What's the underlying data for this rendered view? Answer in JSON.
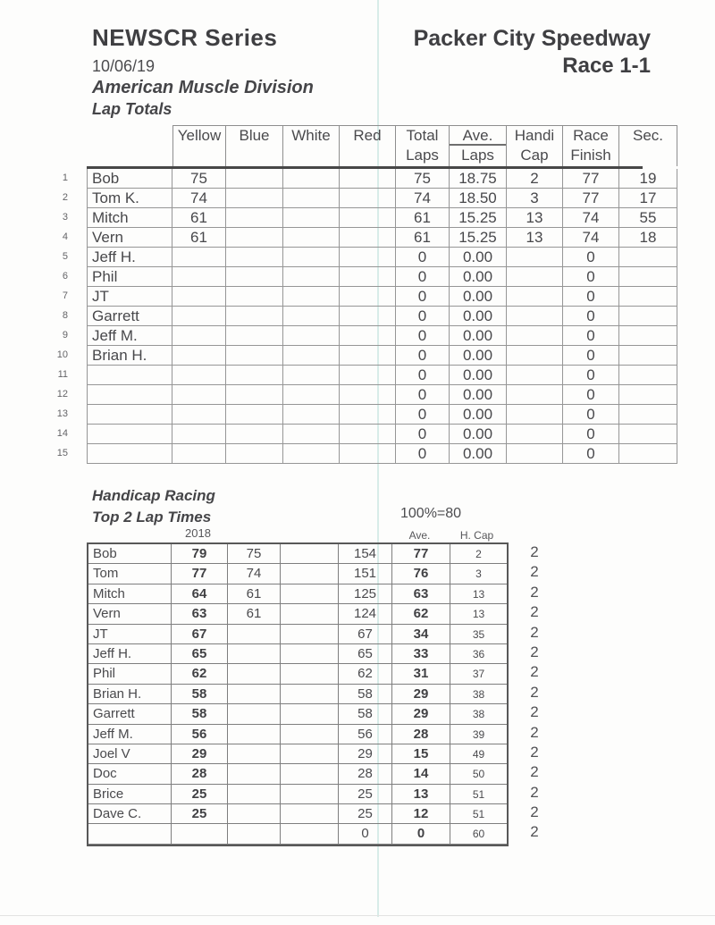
{
  "header": {
    "series": "NEWSCR Series",
    "date": "10/06/19",
    "track": "Packer City Speedway",
    "race": "Race 1-1",
    "division": "American Muscle Division",
    "sheet_title": "Lap Totals"
  },
  "lap_totals": {
    "head": {
      "yellow": "Yellow",
      "blue": "Blue",
      "white": "White",
      "red": "Red",
      "total1": "Total",
      "total2": "Laps",
      "ave1": "Ave.",
      "ave2": "Laps",
      "handi1": "Handi",
      "handi2": "Cap",
      "race1": "Race",
      "race2": "Finish",
      "sec": "Sec."
    },
    "row_numbers": [
      "1",
      "2",
      "3",
      "4",
      "5",
      "6",
      "7",
      "8",
      "9",
      "10",
      "11",
      "12",
      "13",
      "14",
      "15"
    ],
    "rows": [
      [
        "Bob",
        "75",
        "",
        "",
        "",
        "75",
        "18.75",
        "2",
        "77",
        "19"
      ],
      [
        "Tom K.",
        "74",
        "",
        "",
        "",
        "74",
        "18.50",
        "3",
        "77",
        "17"
      ],
      [
        "Mitch",
        "61",
        "",
        "",
        "",
        "61",
        "15.25",
        "13",
        "74",
        "55"
      ],
      [
        "Vern",
        "61",
        "",
        "",
        "",
        "61",
        "15.25",
        "13",
        "74",
        "18"
      ],
      [
        "Jeff H.",
        "",
        "",
        "",
        "",
        "0",
        "0.00",
        "",
        "0",
        ""
      ],
      [
        "Phil",
        "",
        "",
        "",
        "",
        "0",
        "0.00",
        "",
        "0",
        ""
      ],
      [
        "JT",
        "",
        "",
        "",
        "",
        "0",
        "0.00",
        "",
        "0",
        ""
      ],
      [
        "Garrett",
        "",
        "",
        "",
        "",
        "0",
        "0.00",
        "",
        "0",
        ""
      ],
      [
        "Jeff M.",
        "",
        "",
        "",
        "",
        "0",
        "0.00",
        "",
        "0",
        ""
      ],
      [
        "Brian H.",
        "",
        "",
        "",
        "",
        "0",
        "0.00",
        "",
        "0",
        ""
      ],
      [
        "",
        "",
        "",
        "",
        "",
        "0",
        "0.00",
        "",
        "0",
        ""
      ],
      [
        "",
        "",
        "",
        "",
        "",
        "0",
        "0.00",
        "",
        "0",
        ""
      ],
      [
        "",
        "",
        "",
        "",
        "",
        "0",
        "0.00",
        "",
        "0",
        ""
      ],
      [
        "",
        "",
        "",
        "",
        "",
        "0",
        "0.00",
        "",
        "0",
        ""
      ],
      [
        "",
        "",
        "",
        "",
        "",
        "0",
        "0.00",
        "",
        "0",
        ""
      ]
    ]
  },
  "handicap_racing": {
    "title1": "Handicap Racing",
    "title2": "Top 2 Lap Times",
    "scale_note": "100%=80",
    "labels": {
      "year": "2018",
      "ave": "Ave.",
      "hcap": "H. Cap"
    },
    "rows": [
      [
        "Bob",
        "79",
        "75",
        "",
        "154",
        "77",
        "2"
      ],
      [
        "Tom",
        "77",
        "74",
        "",
        "151",
        "76",
        "3"
      ],
      [
        "Mitch",
        "64",
        "61",
        "",
        "125",
        "63",
        "13"
      ],
      [
        "Vern",
        "63",
        "61",
        "",
        "124",
        "62",
        "13"
      ],
      [
        "JT",
        "67",
        "",
        "",
        "67",
        "34",
        "35"
      ],
      [
        "Jeff H.",
        "65",
        "",
        "",
        "65",
        "33",
        "36"
      ],
      [
        "Phil",
        "62",
        "",
        "",
        "62",
        "31",
        "37"
      ],
      [
        "Brian H.",
        "58",
        "",
        "",
        "58",
        "29",
        "38"
      ],
      [
        "Garrett",
        "58",
        "",
        "",
        "58",
        "29",
        "38"
      ],
      [
        "Jeff M.",
        "56",
        "",
        "",
        "56",
        "28",
        "39"
      ],
      [
        "Joel V",
        "29",
        "",
        "",
        "29",
        "15",
        "49"
      ],
      [
        "Doc",
        "28",
        "",
        "",
        "28",
        "14",
        "50"
      ],
      [
        "Brice",
        "25",
        "",
        "",
        "25",
        "13",
        "51"
      ],
      [
        "Dave C.",
        "25",
        "",
        "",
        "25",
        "12",
        "51"
      ],
      [
        "",
        "",
        "",
        "",
        "0",
        "0",
        "60"
      ]
    ],
    "extra_column": [
      "2",
      "2",
      "2",
      "2",
      "2",
      "2",
      "2",
      "2",
      "2",
      "2",
      "2",
      "2",
      "2",
      "2",
      "2"
    ]
  },
  "artifacts": {
    "scan_line_color": "#aad6d0"
  }
}
